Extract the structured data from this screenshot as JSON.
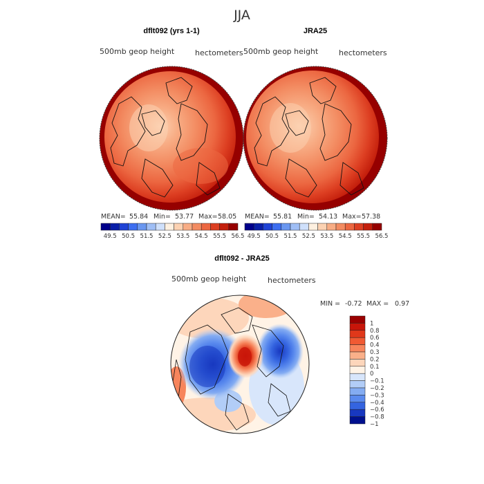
{
  "page_title": "JJA",
  "panel_left": {
    "title": "dflt092 (yrs 1-1)",
    "variable": "500mb geop height",
    "units": "hectometers",
    "stats": {
      "mean_label": "MEAN=",
      "mean": "55.84",
      "min_label": "Min=",
      "min": "53.77",
      "max_label": "Max=",
      "max": "58.05"
    }
  },
  "panel_right": {
    "title": "JRA25",
    "variable": "500mb geop height",
    "units": "hectometers",
    "stats": {
      "mean_label": "MEAN=",
      "mean": "55.81",
      "min_label": "Min=",
      "min": "54.13",
      "max_label": "Max=",
      "max": "57.38"
    }
  },
  "panel_diff": {
    "title": "dflt092 - JRA25",
    "variable": "500mb geop height",
    "units": "hectometers",
    "stats": {
      "min_label": "MIN =",
      "min": "-0.72",
      "max_label": "MAX =",
      "max": "0.97"
    }
  },
  "colorbar_abs": {
    "tick_labels": [
      "49.5",
      "50.5",
      "51.5",
      "52.5",
      "53.5",
      "54.5",
      "55.5",
      "56.5"
    ],
    "colors": [
      "#00008b",
      "#0a1fa8",
      "#1f43d6",
      "#3d6ef0",
      "#6a97f0",
      "#9fbef5",
      "#cfe0fb",
      "#fef0e0",
      "#fcd2b2",
      "#f8ad85",
      "#f38c62",
      "#ec6741",
      "#dd3f22",
      "#c41f0c",
      "#960000"
    ]
  },
  "colorbar_diff": {
    "tick_labels": [
      "1",
      "0.8",
      "0.6",
      "0.4",
      "0.3",
      "0.2",
      "0.1",
      "0",
      "−0.1",
      "−0.2",
      "−0.3",
      "−0.4",
      "−0.6",
      "−0.8",
      "−1"
    ],
    "colors": [
      "#9a0000",
      "#c81509",
      "#e0381a",
      "#f05a33",
      "#f7855c",
      "#fab08a",
      "#fdd6bb",
      "#fff3e6",
      "#d8e6fb",
      "#b2cdf7",
      "#84acf2",
      "#5a8aee",
      "#3464e0",
      "#1838c0",
      "#00108e"
    ]
  },
  "chart_data": [
    {
      "type": "heatmap",
      "title": "dflt092 (yrs 1-1)",
      "field": "500mb geop height",
      "units": "hectometers",
      "projection": "north polar stereographic",
      "mean": 55.84,
      "min": 53.77,
      "max": 58.05
    },
    {
      "type": "heatmap",
      "title": "JRA25",
      "field": "500mb geop height",
      "units": "hectometers",
      "projection": "north polar stereographic",
      "mean": 55.81,
      "min": 54.13,
      "max": 57.38
    },
    {
      "type": "heatmap",
      "title": "dflt092 - JRA25",
      "field": "500mb geop height",
      "units": "hectometers",
      "projection": "north polar stereographic",
      "min": -0.72,
      "max": 0.97
    }
  ]
}
